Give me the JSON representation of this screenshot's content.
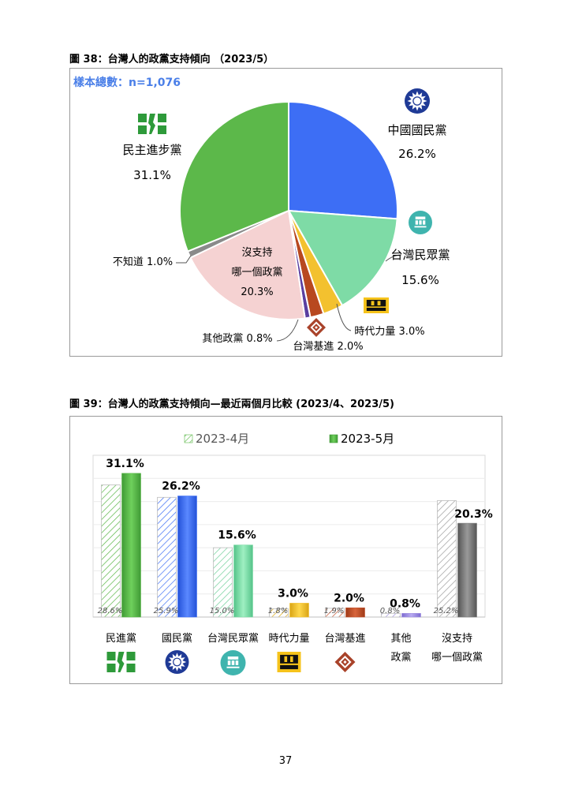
{
  "page": {
    "number": "37"
  },
  "figure38": {
    "title": "圖 38：台灣人的政黨支持傾向 （2023/5）",
    "sample_size": "樣本總數：n=1,076"
  },
  "figure39": {
    "title": "圖 39：台灣人的政黨支持傾向—最近兩個月比較 (2023/4、2023/5)"
  },
  "chart_data": [
    {
      "type": "pie",
      "title": "圖 38：台灣人的政黨支持傾向 （2023/5）",
      "slices": [
        {
          "label": "中國國民黨",
          "value": 26.2,
          "value_label": "26.2%",
          "color": "#3d6ef5"
        },
        {
          "label": "台灣民眾黨",
          "value": 15.6,
          "value_label": "15.6%",
          "color": "#7edba6"
        },
        {
          "label": "時代力量",
          "value": 3.0,
          "value_label": "3.0%",
          "color": "#f3c12f"
        },
        {
          "label": "台灣基進",
          "value": 2.0,
          "value_label": "2.0%",
          "color": "#b8481f"
        },
        {
          "label": "其他政黨",
          "value": 0.8,
          "value_label": "0.8%",
          "color": "#5a3fa0"
        },
        {
          "label": "沒支持哪一個政黨",
          "label_lines": [
            "沒支持",
            "哪一個政黨"
          ],
          "value": 20.3,
          "value_label": "20.3%",
          "color": "#f5d2d2"
        },
        {
          "label": "不知道",
          "value": 1.0,
          "value_label": "1.0%",
          "color": "#8a8a8a"
        },
        {
          "label": "民主進步黨",
          "value": 31.1,
          "value_label": "31.1%",
          "color": "#5cb84a"
        }
      ],
      "inline_labels": {
        "outside_small_1": "時代力量 3.0%",
        "outside_small_2": "台灣基進 2.0%",
        "outside_small_3": "其他政黨 0.8%",
        "outside_small_4": "不知道 1.0%"
      }
    },
    {
      "type": "bar",
      "title": "圖 39：台灣人的政黨支持傾向—最近兩個月比較 (2023/4、2023/5)",
      "categories": [
        "民進黨",
        "國民黨",
        "台灣民眾黨",
        "時代力量",
        "台灣基進",
        "其他政黨",
        "沒支持哪一個政黨"
      ],
      "category_label_lines": [
        [
          "民進黨"
        ],
        [
          "國民黨"
        ],
        [
          "台灣民眾黨"
        ],
        [
          "時代力量"
        ],
        [
          "台灣基進"
        ],
        [
          "其他",
          "政黨"
        ],
        [
          "沒支持",
          "哪一個政黨"
        ]
      ],
      "category_colors": [
        "#5cb84a",
        "#3d6ef5",
        "#7edba6",
        "#f3c12f",
        "#c4532e",
        "#9f8fe0",
        "#7a7a7a"
      ],
      "series": [
        {
          "name": "2023-4月",
          "values": [
            28.6,
            25.9,
            15.0,
            1.8,
            1.9,
            0.8,
            25.2
          ],
          "labels": [
            "28.6%",
            "25.9%",
            "15.0%",
            "1.8%",
            "1.9%",
            "0.8%",
            "25.2%"
          ],
          "style": "hatched"
        },
        {
          "name": "2023-5月",
          "values": [
            31.1,
            26.2,
            15.6,
            3.0,
            2.0,
            0.8,
            20.3
          ],
          "labels": [
            "31.1%",
            "26.2%",
            "15.6%",
            "3.0%",
            "2.0%",
            "0.8%",
            "20.3%"
          ],
          "style": "solid"
        }
      ],
      "ylim": [
        0,
        35
      ],
      "legend_position": "top-center",
      "grid": true
    }
  ]
}
